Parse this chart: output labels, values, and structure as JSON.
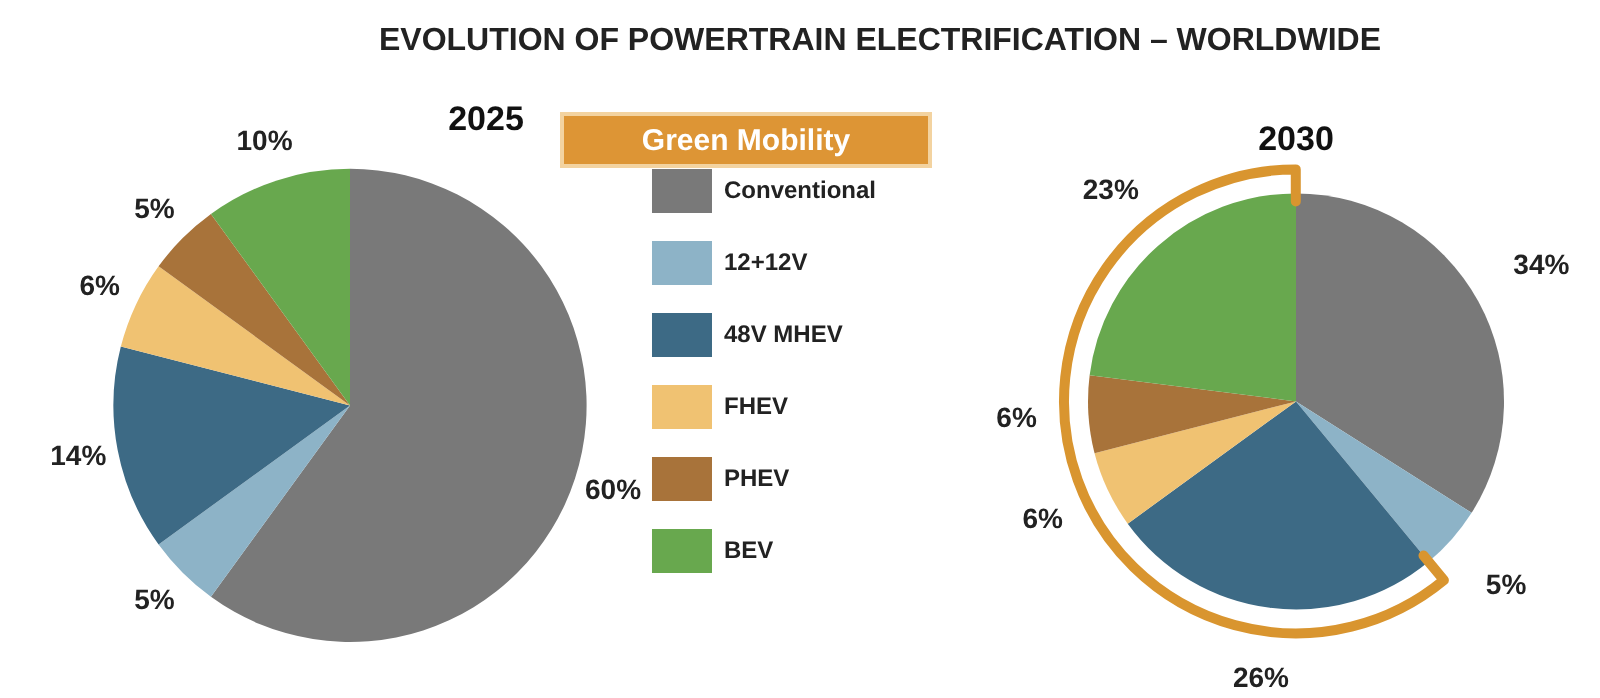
{
  "chart_data": [
    {
      "type": "pie",
      "title": "EVOLUTION OF POWERTRAIN ELECTRIFICATION – WORLDWIDE",
      "subtitle": "2025",
      "categories": [
        "Conventional",
        "12+12V",
        "48V MHEV",
        "FHEV",
        "PHEV",
        "BEV"
      ],
      "values": [
        60,
        5,
        14,
        6,
        5,
        10
      ],
      "value_labels": [
        "60%",
        "5%",
        "14%",
        "6%",
        "5%",
        "10%"
      ],
      "colors": [
        "#797979",
        "#8db3c7",
        "#3d6a85",
        "#f0c272",
        "#a8733a",
        "#68a84e"
      ],
      "legend": "right"
    },
    {
      "type": "pie",
      "title": "2030",
      "categories": [
        null,
        null,
        null,
        null,
        null,
        null
      ],
      "values": [
        34,
        5,
        26,
        6,
        6,
        23
      ],
      "value_labels": [
        "34%",
        "5%",
        "26%",
        "6%",
        "6%",
        "23%"
      ],
      "colors": [
        "#797979",
        "#8db3c7",
        "#3d6a85",
        "#f0c272",
        "#a8733a",
        "#68a84e"
      ],
      "legend": false,
      "annotations": [
        "Green Mobility"
      ]
    }
  ]
}
